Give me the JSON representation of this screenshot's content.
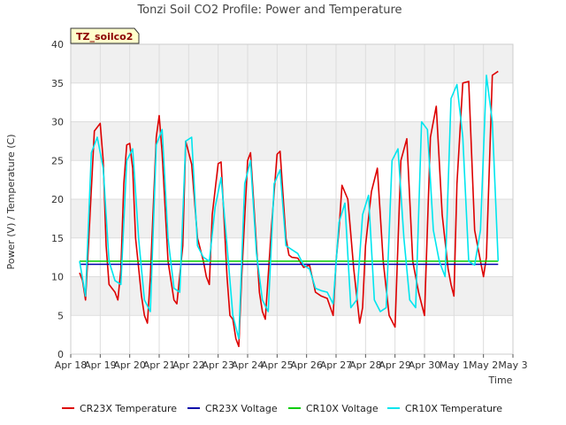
{
  "chart_data": {
    "type": "line",
    "title": "Tonzi Soil CO2 Profile: Power and Temperature",
    "badge": "TZ_soilco2",
    "xlabel": "Time",
    "ylabel": "Power (V) / Temperature (C)",
    "xlim": [
      18,
      33
    ],
    "ylim": [
      0,
      40
    ],
    "x_ticks": [
      {
        "x": 18,
        "label": "Apr 18"
      },
      {
        "x": 19,
        "label": "Apr 19"
      },
      {
        "x": 20,
        "label": "Apr 20"
      },
      {
        "x": 21,
        "label": "Apr 21"
      },
      {
        "x": 22,
        "label": "Apr 22"
      },
      {
        "x": 23,
        "label": "Apr 23"
      },
      {
        "x": 24,
        "label": "Apr 24"
      },
      {
        "x": 25,
        "label": "Apr 25"
      },
      {
        "x": 26,
        "label": "Apr 26"
      },
      {
        "x": 27,
        "label": "Apr 27"
      },
      {
        "x": 28,
        "label": "Apr 28"
      },
      {
        "x": 29,
        "label": "Apr 29"
      },
      {
        "x": 30,
        "label": "Apr 30"
      },
      {
        "x": 31,
        "label": "May 1"
      },
      {
        "x": 32,
        "label": "May 2"
      },
      {
        "x": 33,
        "label": "May 3"
      }
    ],
    "y_ticks": [
      0,
      5,
      10,
      15,
      20,
      25,
      30,
      35,
      40
    ],
    "grid": true,
    "legend_position": "bottom",
    "series": [
      {
        "name": "CR23X Temperature",
        "color": "#dd0000",
        "x": [
          18.3,
          18.4,
          18.5,
          18.6,
          18.8,
          19.0,
          19.1,
          19.2,
          19.3,
          19.5,
          19.6,
          19.7,
          19.8,
          19.9,
          20.0,
          20.1,
          20.2,
          20.4,
          20.5,
          20.6,
          20.7,
          20.9,
          21.0,
          21.1,
          21.3,
          21.5,
          21.6,
          21.8,
          21.9,
          22.1,
          22.3,
          22.5,
          22.6,
          22.7,
          22.8,
          23.0,
          23.1,
          23.3,
          23.4,
          23.5,
          23.6,
          23.7,
          23.8,
          24.0,
          24.1,
          24.3,
          24.4,
          24.5,
          24.6,
          24.8,
          25.0,
          25.1,
          25.3,
          25.4,
          25.5,
          25.7,
          25.9,
          26.1,
          26.3,
          26.5,
          26.7,
          26.9,
          27.0,
          27.1,
          27.2,
          27.4,
          27.6,
          27.8,
          27.9,
          28.0,
          28.2,
          28.4,
          28.6,
          28.8,
          29.0,
          29.2,
          29.4,
          29.6,
          29.8,
          30.0,
          30.2,
          30.4,
          30.6,
          30.8,
          30.9,
          31.0,
          31.1,
          31.3,
          31.5,
          31.7,
          31.9,
          32.0,
          32.1,
          32.3,
          32.5
        ],
        "y": [
          10.5,
          9.5,
          7.0,
          14.0,
          28.8,
          29.8,
          25.0,
          14.0,
          9.0,
          8.0,
          7.0,
          11.0,
          22.0,
          27.0,
          27.2,
          24.0,
          15.0,
          7.5,
          5.0,
          4.0,
          10.0,
          28.0,
          30.8,
          26.0,
          12.0,
          7.0,
          6.5,
          14.0,
          27.5,
          24.5,
          15.0,
          12.0,
          10.0,
          9.0,
          18.0,
          24.6,
          24.8,
          10.0,
          5.0,
          4.5,
          2.0,
          1.0,
          10.0,
          25.0,
          26.0,
          14.0,
          8.0,
          5.5,
          4.5,
          16.0,
          25.8,
          26.2,
          15.0,
          12.8,
          12.5,
          12.4,
          11.2,
          11.5,
          8.0,
          7.5,
          7.2,
          5.0,
          12.0,
          16.0,
          21.8,
          20.0,
          11.0,
          4.0,
          6.0,
          14.0,
          21.0,
          24.0,
          12.0,
          5.0,
          3.5,
          25.0,
          27.8,
          12.0,
          8.0,
          5.0,
          28.0,
          32.0,
          18.0,
          11.0,
          9.0,
          7.5,
          22.0,
          35.0,
          35.2,
          16.0,
          12.0,
          10.0,
          12.5,
          36.0,
          36.5
        ]
      },
      {
        "name": "CR23X Voltage",
        "color": "#0000aa",
        "x": [
          18.3,
          32.5
        ],
        "y": [
          11.6,
          11.6
        ]
      },
      {
        "name": "CR10X Voltage",
        "color": "#00cc00",
        "x": [
          18.3,
          32.5
        ],
        "y": [
          12.0,
          12.0
        ]
      },
      {
        "name": "CR10X Temperature",
        "color": "#00e5ee",
        "x": [
          18.3,
          18.5,
          18.7,
          18.9,
          19.1,
          19.3,
          19.5,
          19.7,
          19.9,
          20.1,
          20.3,
          20.5,
          20.7,
          20.9,
          21.1,
          21.3,
          21.5,
          21.7,
          21.9,
          22.1,
          22.3,
          22.5,
          22.7,
          22.9,
          23.1,
          23.3,
          23.5,
          23.7,
          23.9,
          24.1,
          24.3,
          24.5,
          24.7,
          24.9,
          25.1,
          25.3,
          25.5,
          25.7,
          25.9,
          26.1,
          26.3,
          26.5,
          26.7,
          26.9,
          27.1,
          27.3,
          27.5,
          27.7,
          27.9,
          28.1,
          28.3,
          28.5,
          28.7,
          28.9,
          29.1,
          29.3,
          29.5,
          29.7,
          29.9,
          30.1,
          30.3,
          30.5,
          30.7,
          30.9,
          31.1,
          31.3,
          31.5,
          31.7,
          31.9,
          32.1,
          32.3,
          32.5
        ],
        "y": [
          12.0,
          7.5,
          26.0,
          28.0,
          24.0,
          12.0,
          9.5,
          9.0,
          25.0,
          26.5,
          15.0,
          7.0,
          5.5,
          27.0,
          29.0,
          15.0,
          8.5,
          8.0,
          27.5,
          28.0,
          14.0,
          12.5,
          12.0,
          19.0,
          22.8,
          14.0,
          5.0,
          2.0,
          22.0,
          25.0,
          13.0,
          7.0,
          5.5,
          22.0,
          23.8,
          14.0,
          13.5,
          13.0,
          11.5,
          11.0,
          8.5,
          8.2,
          8.0,
          6.5,
          17.0,
          19.5,
          6.0,
          7.0,
          18.0,
          20.5,
          7.0,
          5.5,
          6.0,
          25.0,
          26.5,
          15.0,
          7.0,
          6.0,
          30.0,
          29.0,
          16.0,
          12.0,
          10.0,
          33.0,
          34.8,
          28.0,
          12.0,
          11.5,
          16.0,
          36.0,
          30.0,
          12.0
        ]
      }
    ]
  }
}
